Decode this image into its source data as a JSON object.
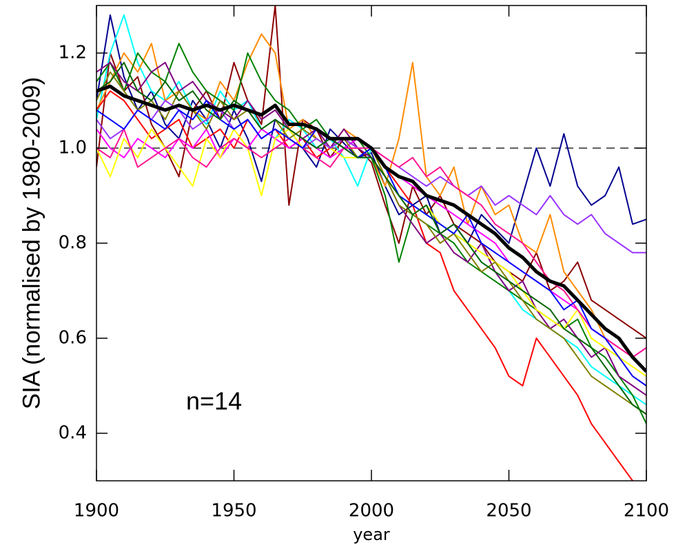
{
  "chart_data": {
    "type": "line",
    "y_label": "SIA (normalised by 1980-2009)",
    "x_label": "year",
    "annotation": "n=14",
    "xlim": [
      1900,
      2100
    ],
    "xticks": [
      1900,
      1950,
      2000,
      2050,
      2100
    ],
    "ylim": [
      0.3,
      1.3
    ],
    "yticks": [
      0.4,
      0.6,
      0.8,
      {
        "value": 1,
        "label": "1.0"
      },
      1.2
    ],
    "hline": 1,
    "x": [
      1900,
      1905,
      1910,
      1915,
      1920,
      1925,
      1930,
      1935,
      1940,
      1945,
      1950,
      1955,
      1960,
      1965,
      1970,
      1975,
      1980,
      1985,
      1990,
      1995,
      2000,
      2005,
      2010,
      2015,
      2020,
      2025,
      2030,
      2035,
      2040,
      2045,
      2050,
      2055,
      2060,
      2065,
      2070,
      2075,
      2080,
      2085,
      2090,
      2095,
      2100
    ],
    "series": [
      {
        "color": "#000090",
        "values": [
          1.1,
          1.28,
          1.15,
          1.08,
          1.12,
          1.05,
          1.02,
          1.1,
          1.06,
          1.0,
          1.08,
          1.02,
          0.93,
          1.06,
          1.04,
          1.0,
          0.96,
          1.04,
          1.01,
          0.98,
          0.99,
          0.92,
          0.86,
          0.88,
          0.9,
          0.82,
          0.84,
          0.8,
          0.86,
          0.83,
          0.8,
          0.9,
          1.0,
          0.92,
          1.03,
          0.92,
          0.88,
          0.9,
          0.96,
          0.84,
          0.85
        ]
      },
      {
        "color": "#8b0000",
        "values": [
          0.96,
          1.2,
          1.12,
          1.15,
          1.05,
          1.0,
          0.94,
          1.08,
          1.12,
          1.06,
          1.18,
          1.1,
          1.05,
          1.3,
          0.88,
          1.06,
          1.04,
          0.98,
          1.02,
          1.0,
          0.97,
          0.88,
          0.8,
          0.92,
          0.86,
          0.9,
          0.84,
          0.82,
          0.8,
          0.76,
          0.74,
          0.72,
          0.78,
          0.7,
          0.72,
          0.76,
          0.68,
          0.66,
          0.64,
          0.62,
          0.6
        ]
      },
      {
        "color": "#00ffff",
        "values": [
          1.06,
          1.2,
          1.28,
          1.18,
          1.12,
          1.1,
          1.14,
          1.08,
          1.05,
          1.12,
          1.08,
          1.1,
          1.04,
          1.02,
          1.06,
          1.04,
          1.0,
          1.02,
          0.98,
          0.92,
          1.0,
          0.96,
          0.9,
          0.88,
          0.86,
          0.84,
          0.82,
          0.8,
          0.76,
          0.74,
          0.7,
          0.66,
          0.64,
          0.62,
          0.6,
          0.58,
          0.54,
          0.52,
          0.5,
          0.48,
          0.46
        ]
      },
      {
        "color": "#ff8c00",
        "values": [
          1.08,
          1.14,
          1.2,
          1.16,
          1.22,
          1.1,
          1.12,
          1.08,
          1.06,
          1.14,
          1.1,
          1.18,
          1.24,
          1.2,
          1.04,
          1.06,
          1.02,
          1.0,
          1.04,
          1.02,
          0.98,
          0.92,
          1.02,
          1.18,
          0.94,
          0.9,
          0.96,
          0.84,
          0.92,
          0.86,
          0.88,
          0.8,
          0.78,
          0.86,
          0.74,
          0.7,
          0.66,
          0.6,
          0.56,
          0.52,
          0.5
        ]
      },
      {
        "color": "#ff0000",
        "values": [
          1.08,
          1.12,
          1.1,
          1.06,
          1.02,
          1.04,
          1.06,
          1.0,
          1.02,
          1.04,
          1.0,
          1.06,
          1.02,
          1.04,
          1.0,
          1.02,
          0.98,
          1.0,
          1.02,
          1.0,
          1.0,
          0.96,
          0.92,
          0.88,
          0.8,
          0.78,
          0.7,
          0.66,
          0.62,
          0.58,
          0.52,
          0.5,
          0.6,
          0.56,
          0.52,
          0.48,
          0.42,
          0.38,
          0.34,
          0.3,
          0.28
        ]
      },
      {
        "color": "#008000",
        "values": [
          1.14,
          1.18,
          1.12,
          1.2,
          1.16,
          1.14,
          1.22,
          1.16,
          1.12,
          1.1,
          1.08,
          1.2,
          1.14,
          1.1,
          1.08,
          1.04,
          1.06,
          1.02,
          1.0,
          1.02,
          0.98,
          0.9,
          0.76,
          0.86,
          0.84,
          0.82,
          0.8,
          0.76,
          0.74,
          0.72,
          0.7,
          0.68,
          0.66,
          0.64,
          0.62,
          0.64,
          0.58,
          0.56,
          0.52,
          0.48,
          0.42
        ]
      },
      {
        "color": "#800080",
        "values": [
          1.16,
          1.18,
          1.14,
          1.12,
          1.16,
          1.18,
          1.12,
          1.14,
          1.1,
          1.08,
          1.06,
          1.1,
          1.06,
          1.08,
          1.04,
          1.02,
          1.04,
          1.0,
          1.04,
          1.0,
          0.98,
          0.94,
          0.88,
          0.84,
          0.8,
          0.82,
          0.78,
          0.76,
          0.8,
          0.74,
          0.7,
          0.72,
          0.66,
          0.62,
          0.64,
          0.6,
          0.56,
          0.58,
          0.52,
          0.5,
          0.48
        ]
      },
      {
        "color": "#ff00ff",
        "values": [
          1.04,
          1.0,
          0.98,
          1.02,
          1.0,
          0.98,
          1.02,
          1.0,
          1.04,
          0.98,
          1.02,
          1.0,
          1.04,
          1.02,
          1.0,
          1.02,
          1.0,
          0.98,
          1.0,
          1.02,
          1.0,
          0.96,
          0.94,
          0.92,
          0.9,
          0.88,
          0.86,
          0.84,
          0.82,
          0.8,
          0.76,
          0.74,
          0.72,
          0.7,
          0.68,
          0.66,
          0.62,
          0.6,
          0.58,
          0.56,
          0.58
        ]
      },
      {
        "color": "#ffff00",
        "values": [
          1.0,
          0.94,
          1.02,
          0.98,
          1.04,
          1.0,
          0.96,
          0.92,
          1.02,
          0.98,
          1.04,
          1.0,
          0.9,
          1.02,
          1.04,
          1.0,
          1.02,
          1.0,
          0.98,
          0.98,
          1.0,
          0.94,
          0.9,
          0.86,
          0.88,
          0.84,
          0.82,
          0.8,
          0.78,
          0.76,
          0.74,
          0.7,
          0.66,
          0.64,
          0.62,
          0.66,
          0.6,
          0.58,
          0.56,
          0.54,
          0.52
        ]
      },
      {
        "color": "#808000",
        "values": [
          1.1,
          1.16,
          1.12,
          1.08,
          1.1,
          1.06,
          1.12,
          1.08,
          1.04,
          1.1,
          1.06,
          1.08,
          1.04,
          1.06,
          1.02,
          1.04,
          1.02,
          1.0,
          1.02,
          0.98,
          1.0,
          0.94,
          0.88,
          0.86,
          0.84,
          0.8,
          0.82,
          0.78,
          0.74,
          0.76,
          0.72,
          0.68,
          0.64,
          0.62,
          0.6,
          0.56,
          0.52,
          0.5,
          0.48,
          0.46,
          0.44
        ]
      },
      {
        "color": "#9933ff",
        "values": [
          1.06,
          1.02,
          1.04,
          1.08,
          1.06,
          1.1,
          1.08,
          1.04,
          1.06,
          1.08,
          1.04,
          1.06,
          1.02,
          1.04,
          1.02,
          1.0,
          1.02,
          1.0,
          1.02,
          1.0,
          1.0,
          0.98,
          0.96,
          0.94,
          0.92,
          0.94,
          0.92,
          0.9,
          0.92,
          0.88,
          0.9,
          0.88,
          0.86,
          0.9,
          0.86,
          0.84,
          0.86,
          0.82,
          0.8,
          0.78,
          0.78
        ]
      },
      {
        "color": "#ff1493",
        "values": [
          1.0,
          0.98,
          1.04,
          0.96,
          0.98,
          1.0,
          1.02,
          0.98,
          0.96,
          1.0,
          1.02,
          1.0,
          0.98,
          1.0,
          1.02,
          1.0,
          0.98,
          0.96,
          1.0,
          1.0,
          1.0,
          0.98,
          0.96,
          0.98,
          0.94,
          0.96,
          0.92,
          0.9,
          0.88,
          0.84,
          0.82,
          0.8,
          0.76,
          0.72,
          0.7,
          0.66,
          0.62,
          0.6,
          0.58,
          0.56,
          0.58
        ]
      },
      {
        "color": "#0000ff",
        "values": [
          1.08,
          1.06,
          1.04,
          1.08,
          1.06,
          1.04,
          1.08,
          1.06,
          1.1,
          1.06,
          1.04,
          1.06,
          1.02,
          1.04,
          1.02,
          1.0,
          1.04,
          1.02,
          1.0,
          0.98,
          1.0,
          0.96,
          0.9,
          0.88,
          0.86,
          0.84,
          0.82,
          0.86,
          0.8,
          0.78,
          0.76,
          0.74,
          0.72,
          0.7,
          0.66,
          0.68,
          0.62,
          0.6,
          0.56,
          0.52,
          0.5
        ]
      },
      {
        "color": "#006400",
        "values": [
          1.12,
          1.14,
          1.18,
          1.12,
          1.1,
          1.14,
          1.1,
          1.12,
          1.08,
          1.06,
          1.1,
          1.08,
          1.04,
          1.06,
          1.04,
          1.02,
          1.0,
          1.02,
          1.0,
          0.98,
          0.98,
          0.94,
          0.9,
          0.86,
          0.88,
          0.82,
          0.84,
          0.8,
          0.76,
          0.74,
          0.72,
          0.7,
          0.68,
          0.66,
          0.62,
          0.6,
          0.58,
          0.54,
          0.5,
          0.46,
          0.44
        ]
      },
      {
        "color": "#000000",
        "line_width": 5,
        "values": [
          1.12,
          1.13,
          1.11,
          1.1,
          1.09,
          1.08,
          1.09,
          1.08,
          1.09,
          1.08,
          1.09,
          1.08,
          1.07,
          1.09,
          1.05,
          1.05,
          1.04,
          1.02,
          1.02,
          1.02,
          1.0,
          0.96,
          0.94,
          0.93,
          0.9,
          0.89,
          0.88,
          0.86,
          0.84,
          0.82,
          0.79,
          0.77,
          0.74,
          0.72,
          0.71,
          0.68,
          0.65,
          0.62,
          0.6,
          0.56,
          0.53
        ]
      }
    ]
  }
}
